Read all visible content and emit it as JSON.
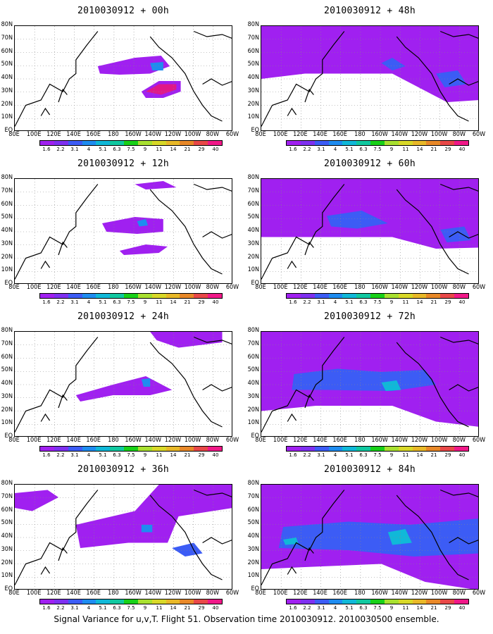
{
  "lat_labels": [
    "80N",
    "70N",
    "60N",
    "50N",
    "40N",
    "30N",
    "20N",
    "10N",
    "EQ"
  ],
  "lon_labels": [
    "80E",
    "100E",
    "120E",
    "140E",
    "160E",
    "180",
    "160W",
    "140W",
    "120W",
    "100W",
    "80W",
    "60W"
  ],
  "colorbar": {
    "labels": [
      "1.6",
      "2.2",
      "3.1",
      "4",
      "5.1",
      "6.3",
      "7.5",
      "9",
      "11",
      "14",
      "21",
      "29",
      "40"
    ],
    "colors": [
      "#a020f0",
      "#7e30f0",
      "#3c5cf5",
      "#1e8cf0",
      "#10b8d8",
      "#10c8a0",
      "#18d018",
      "#a8e030",
      "#d8d828",
      "#e8b828",
      "#e88828",
      "#e84848",
      "#f01888"
    ]
  },
  "panels": [
    {
      "title": "2010030912 + 00h",
      "level": 0
    },
    {
      "title": "2010030912 + 48h",
      "level": 4
    },
    {
      "title": "2010030912 + 12h",
      "level": 1
    },
    {
      "title": "2010030912 + 60h",
      "level": 5
    },
    {
      "title": "2010030912 + 24h",
      "level": 2
    },
    {
      "title": "2010030912 + 72h",
      "level": 6
    },
    {
      "title": "2010030912 + 36h",
      "level": 3
    },
    {
      "title": "2010030912 + 84h",
      "level": 7
    }
  ],
  "footer": "Signal Variance for u,v,T. Flight 51. Observation time 2010030912. 2010030500 ensemble."
}
